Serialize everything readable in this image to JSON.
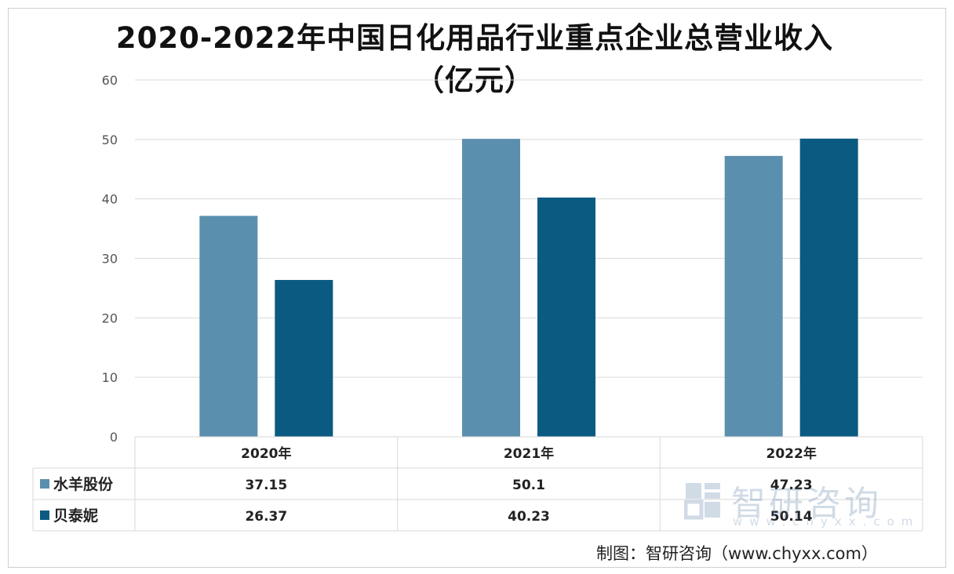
{
  "chart_data": {
    "type": "bar",
    "title_line1": "2020-2022年中国日化用品行业重点企业总营业收入",
    "title_line2": "（亿元）",
    "categories": [
      "2020年",
      "2021年",
      "2022年"
    ],
    "series": [
      {
        "name": "水羊股份",
        "color": "#5b8fae",
        "values": [
          37.15,
          50.1,
          47.23
        ],
        "labels": [
          "37.15",
          "50.1",
          "47.23"
        ]
      },
      {
        "name": "贝泰妮",
        "color": "#0b5a82",
        "values": [
          26.37,
          40.23,
          50.14
        ],
        "labels": [
          "26.37",
          "40.23",
          "50.14"
        ]
      }
    ],
    "ylim": [
      0,
      60
    ],
    "yticks": [
      0,
      10,
      20,
      30,
      40,
      50,
      60
    ],
    "grid": true,
    "legend_position": "data-table"
  },
  "watermark": {
    "brand": "智研咨询",
    "url": "www.chyxx.com"
  },
  "source": "制图：智研咨询（www.chyxx.com）"
}
